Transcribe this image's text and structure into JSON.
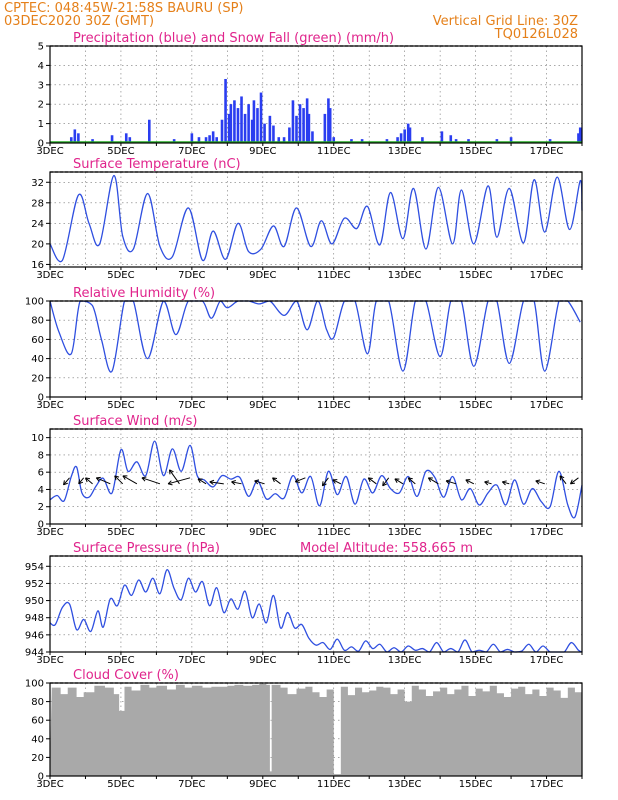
{
  "header": {
    "line1_left": "CPTEC:   048:45W-21:58S   BAURU (SP)",
    "line2_left": "03DEC2020 30Z (GMT)",
    "line1_right": "Vertical Grid Line: 30Z",
    "line2_right": "TQ0126L028"
  },
  "colors": {
    "header": "#e5801a",
    "title": "#e0248c",
    "line": "#2f4fe0",
    "precip": "#2a3df0",
    "snow": "#22aa22",
    "cloud": "#a9a9a9"
  },
  "x_axis": {
    "start_day": 3,
    "end_day": 18,
    "tick_labels": [
      "3DEC",
      "5DEC",
      "7DEC",
      "9DEC",
      "11DEC",
      "13DEC",
      "15DEC",
      "17DEC"
    ]
  },
  "chart_data": [
    {
      "type": "bar",
      "title": "Precipitation (blue) and Snow Fall (green) (mm/h)",
      "ylim": [
        0,
        5
      ],
      "yticks": [
        "0",
        "1",
        "2",
        "3",
        "4",
        "5"
      ],
      "grid": true,
      "series": [
        {
          "name": "Precipitation",
          "color": "#2a3df0",
          "points": [
            [
              3.6,
              0.3
            ],
            [
              3.7,
              0.7
            ],
            [
              3.8,
              0.5
            ],
            [
              4.2,
              0.2
            ],
            [
              4.75,
              0.4
            ],
            [
              5.15,
              0.5
            ],
            [
              5.25,
              0.3
            ],
            [
              5.8,
              1.2
            ],
            [
              6.5,
              0.2
            ],
            [
              7.0,
              0.5
            ],
            [
              7.2,
              0.3
            ],
            [
              7.4,
              0.3
            ],
            [
              7.5,
              0.4
            ],
            [
              7.6,
              0.6
            ],
            [
              7.7,
              0.3
            ],
            [
              7.85,
              1.2
            ],
            [
              7.95,
              3.3
            ],
            [
              8.05,
              1.5
            ],
            [
              8.1,
              2.0
            ],
            [
              8.2,
              2.2
            ],
            [
              8.3,
              1.8
            ],
            [
              8.4,
              2.4
            ],
            [
              8.5,
              1.5
            ],
            [
              8.6,
              2.0
            ],
            [
              8.7,
              1.2
            ],
            [
              8.75,
              2.2
            ],
            [
              8.85,
              1.8
            ],
            [
              8.95,
              2.6
            ],
            [
              9.05,
              1.0
            ],
            [
              9.2,
              1.4
            ],
            [
              9.3,
              0.9
            ],
            [
              9.45,
              0.3
            ],
            [
              9.6,
              0.3
            ],
            [
              9.75,
              0.8
            ],
            [
              9.85,
              2.2
            ],
            [
              9.95,
              1.4
            ],
            [
              10.05,
              2.0
            ],
            [
              10.15,
              1.8
            ],
            [
              10.25,
              2.3
            ],
            [
              10.3,
              1.5
            ],
            [
              10.4,
              0.6
            ],
            [
              10.75,
              1.5
            ],
            [
              10.85,
              2.3
            ],
            [
              10.9,
              1.8
            ],
            [
              11.0,
              0.3
            ],
            [
              11.5,
              0.2
            ],
            [
              11.8,
              0.2
            ],
            [
              12.5,
              0.2
            ],
            [
              12.8,
              0.3
            ],
            [
              12.9,
              0.5
            ],
            [
              13.0,
              0.7
            ],
            [
              13.1,
              1.0
            ],
            [
              13.15,
              0.8
            ],
            [
              13.5,
              0.3
            ],
            [
              14.05,
              0.6
            ],
            [
              14.3,
              0.4
            ],
            [
              14.45,
              0.2
            ],
            [
              14.8,
              0.2
            ],
            [
              15.6,
              0.2
            ],
            [
              16.0,
              0.3
            ],
            [
              17.1,
              0.2
            ],
            [
              17.9,
              0.5
            ],
            [
              17.95,
              0.8
            ]
          ]
        },
        {
          "name": "Snow Fall",
          "color": "#22aa22",
          "points": []
        }
      ]
    },
    {
      "type": "line",
      "title": "Surface Temperature (nC)",
      "ylim": [
        15.5,
        34
      ],
      "yticks": [
        "16",
        "20",
        "24",
        "28",
        "32"
      ],
      "grid": true,
      "x": [
        3.0,
        3.35,
        3.8,
        4.1,
        4.4,
        4.8,
        5.05,
        5.35,
        5.75,
        6.1,
        6.45,
        6.9,
        7.3,
        7.6,
        7.95,
        8.3,
        8.6,
        8.95,
        9.3,
        9.6,
        9.95,
        10.35,
        10.65,
        10.95,
        11.3,
        11.65,
        11.95,
        12.3,
        12.6,
        12.95,
        13.25,
        13.6,
        13.95,
        14.35,
        14.6,
        14.95,
        15.35,
        15.6,
        15.95,
        16.35,
        16.65,
        16.95,
        17.3,
        17.65,
        17.95,
        18.0
      ],
      "values": [
        20,
        16.8,
        29.5,
        24,
        20,
        33.3,
        21.5,
        19,
        29.8,
        19.5,
        17.5,
        27,
        16.8,
        22.5,
        17,
        24,
        18.5,
        19,
        23.5,
        19.5,
        27,
        19.5,
        24.5,
        20,
        25,
        23,
        27.3,
        19.8,
        30,
        21,
        30.8,
        19,
        31,
        20,
        30.5,
        20,
        31.3,
        21.3,
        30.8,
        20.2,
        32.5,
        22.3,
        33,
        22.8,
        32.3,
        26.5
      ]
    },
    {
      "type": "line",
      "title": "Relative Humidity (%)",
      "ylim": [
        0,
        100
      ],
      "yticks": [
        "0",
        "20",
        "40",
        "60",
        "80",
        "100"
      ],
      "grid": true,
      "x": [
        3.0,
        3.25,
        3.6,
        3.85,
        4.2,
        4.45,
        4.75,
        5.1,
        5.35,
        5.75,
        6.2,
        6.55,
        6.9,
        7.3,
        7.55,
        7.8,
        8.0,
        8.3,
        8.6,
        8.9,
        9.2,
        9.6,
        9.95,
        10.25,
        10.55,
        10.8,
        11.0,
        11.3,
        11.6,
        11.95,
        12.2,
        12.55,
        12.95,
        13.3,
        13.6,
        14.0,
        14.3,
        14.6,
        14.95,
        15.35,
        15.6,
        15.95,
        16.35,
        16.65,
        16.95,
        17.35,
        17.6,
        17.95
      ],
      "values": [
        100,
        68,
        45,
        100,
        95,
        60,
        27,
        100,
        100,
        40,
        100,
        65,
        100,
        100,
        82,
        100,
        93,
        100,
        100,
        97,
        100,
        85,
        100,
        70,
        100,
        70,
        62,
        100,
        100,
        45,
        100,
        100,
        27,
        100,
        100,
        42,
        100,
        100,
        32,
        100,
        100,
        35,
        100,
        100,
        27,
        100,
        100,
        78
      ]
    },
    {
      "type": "line",
      "title": "Surface Wind (m/s)",
      "ylim": [
        0,
        11
      ],
      "yticks": [
        "0",
        "2",
        "4",
        "6",
        "8",
        "10"
      ],
      "grid": true,
      "x": [
        3.0,
        3.2,
        3.4,
        3.6,
        3.75,
        3.9,
        4.1,
        4.3,
        4.5,
        4.75,
        5.0,
        5.2,
        5.45,
        5.7,
        5.95,
        6.2,
        6.45,
        6.7,
        6.95,
        7.15,
        7.35,
        7.6,
        7.85,
        8.1,
        8.35,
        8.6,
        8.85,
        9.1,
        9.35,
        9.6,
        9.85,
        10.1,
        10.35,
        10.6,
        10.85,
        11.1,
        11.35,
        11.6,
        11.85,
        12.1,
        12.35,
        12.6,
        12.85,
        13.1,
        13.35,
        13.6,
        13.85,
        14.1,
        14.35,
        14.6,
        14.85,
        15.1,
        15.35,
        15.6,
        15.85,
        16.1,
        16.35,
        16.6,
        16.85,
        17.1,
        17.35,
        17.6,
        17.8,
        18.0
      ],
      "values": [
        2.8,
        3.3,
        2.7,
        5.5,
        6.6,
        3.6,
        3.1,
        4.4,
        5.3,
        3.6,
        8.6,
        6.1,
        7.2,
        5.6,
        9.6,
        5.6,
        8.7,
        6.1,
        9.1,
        5.6,
        5.1,
        4.3,
        5.6,
        5.2,
        5.4,
        3.2,
        5.0,
        2.9,
        3.5,
        3.0,
        5.6,
        3.6,
        5.5,
        2.1,
        6.1,
        3.4,
        5.5,
        2.3,
        5.2,
        3.6,
        5.6,
        4.1,
        3.6,
        5.5,
        3.2,
        6.1,
        5.4,
        3.1,
        5.5,
        2.8,
        4.1,
        2.2,
        3.6,
        4.5,
        2.2,
        5.1,
        2.3,
        4.1,
        2.6,
        2.0,
        6.1,
        2.2,
        0.8,
        4.5
      ]
    },
    {
      "type": "line",
      "title": "Surface Pressure (hPa)",
      "annotation": "Model Altitude: 558.665  m",
      "ylim": [
        944,
        955.2
      ],
      "yticks": [
        "944",
        "946",
        "948",
        "950",
        "952",
        "954"
      ],
      "grid": true,
      "x": [
        3.0,
        3.15,
        3.35,
        3.55,
        3.75,
        3.95,
        4.15,
        4.35,
        4.5,
        4.7,
        4.9,
        5.1,
        5.3,
        5.5,
        5.7,
        5.9,
        6.1,
        6.3,
        6.5,
        6.7,
        6.9,
        7.1,
        7.3,
        7.5,
        7.7,
        7.9,
        8.1,
        8.3,
        8.5,
        8.7,
        8.9,
        9.1,
        9.3,
        9.5,
        9.7,
        9.9,
        10.1,
        10.3,
        10.5,
        10.7,
        10.9,
        11.1,
        11.3,
        11.5,
        11.7,
        11.9,
        12.1,
        12.3,
        12.5,
        12.7,
        12.9,
        13.1,
        13.3,
        13.5,
        13.7,
        13.9,
        14.1,
        14.3,
        14.5,
        14.7,
        14.9,
        15.1,
        15.3,
        15.5,
        15.7,
        15.9,
        16.1,
        16.3,
        16.5,
        16.7,
        16.9,
        17.1,
        17.3,
        17.5,
        17.7,
        17.9,
        18.0
      ],
      "values": [
        947.4,
        947.2,
        949.2,
        949.6,
        946.6,
        947.8,
        946.4,
        948.8,
        946.9,
        950.2,
        949.4,
        951.8,
        950.6,
        952.4,
        951.0,
        952.6,
        950.8,
        953.6,
        951.4,
        950.1,
        952.6,
        951.0,
        952.2,
        949.4,
        951.5,
        948.6,
        950.2,
        949.0,
        951.1,
        948.0,
        949.6,
        947.4,
        950.6,
        946.8,
        948.6,
        946.8,
        947.2,
        945.6,
        944.8,
        945.1,
        944.3,
        945.5,
        944.2,
        944.6,
        944.1,
        945.3,
        944.4,
        944.9,
        944.0,
        944.5,
        944.0,
        944.7,
        944.2,
        944.4,
        944.0,
        945.1,
        944.0,
        944.4,
        944.0,
        945.4,
        944.0,
        944.2,
        944.0,
        944.9,
        944.0,
        944.3,
        944.0,
        944.1,
        944.9,
        944.0,
        944.7,
        944.0,
        944.0,
        944.0,
        945.1,
        944.2,
        944.0
      ]
    },
    {
      "type": "area",
      "title": "Cloud Cover (%)",
      "ylim": [
        0,
        100
      ],
      "yticks": [
        "0",
        "20",
        "40",
        "60",
        "80",
        "100"
      ],
      "grid": true,
      "x": [
        3.05,
        3.3,
        3.5,
        3.75,
        3.95,
        4.25,
        4.55,
        4.8,
        4.95,
        5.1,
        5.3,
        5.55,
        5.8,
        6.0,
        6.3,
        6.55,
        6.8,
        7.0,
        7.3,
        7.55,
        7.8,
        8.0,
        8.2,
        8.45,
        8.7,
        8.9,
        9.1,
        9.2,
        9.25,
        9.5,
        9.7,
        9.95,
        10.2,
        10.4,
        10.6,
        10.8,
        11.0,
        11.2,
        11.4,
        11.6,
        11.8,
        12.0,
        12.2,
        12.4,
        12.6,
        12.8,
        13.0,
        13.2,
        13.4,
        13.6,
        13.8,
        14.0,
        14.2,
        14.4,
        14.6,
        14.8,
        15.0,
        15.2,
        15.4,
        15.6,
        15.8,
        16.0,
        16.2,
        16.4,
        16.6,
        16.8,
        17.0,
        17.2,
        17.4,
        17.6,
        17.8,
        18.0
      ],
      "values": [
        95,
        88,
        95,
        85,
        90,
        97,
        95,
        88,
        70,
        96,
        92,
        98,
        95,
        97,
        93,
        98,
        95,
        97,
        95,
        96,
        96,
        97,
        98,
        97,
        98,
        99,
        98,
        5,
        98,
        95,
        88,
        94,
        96,
        90,
        85,
        93,
        2,
        96,
        87,
        95,
        90,
        92,
        96,
        95,
        88,
        93,
        80,
        97,
        93,
        86,
        91,
        95,
        88,
        93,
        97,
        86,
        94,
        91,
        97,
        89,
        85,
        94,
        96,
        88,
        93,
        86,
        95,
        92,
        84,
        95,
        90,
        96
      ]
    }
  ],
  "wind_arrows": [
    {
      "day": 3.55,
      "dx": -6,
      "dy": 7
    },
    {
      "day": 3.95,
      "dx": -5,
      "dy": 6
    },
    {
      "day": 4.2,
      "dx": -7,
      "dy": -6
    },
    {
      "day": 4.7,
      "dx": -14,
      "dy": -6
    },
    {
      "day": 5.05,
      "dx": -8,
      "dy": -8
    },
    {
      "day": 5.45,
      "dx": -14,
      "dy": -8
    },
    {
      "day": 6.1,
      "dx": -18,
      "dy": -6
    },
    {
      "day": 6.65,
      "dx": -10,
      "dy": -14
    },
    {
      "day": 6.95,
      "dx": -22,
      "dy": 6
    },
    {
      "day": 7.4,
      "dx": -8,
      "dy": -5
    },
    {
      "day": 7.9,
      "dx": -14,
      "dy": -2
    },
    {
      "day": 8.4,
      "dx": -10,
      "dy": -2
    },
    {
      "day": 9.05,
      "dx": -10,
      "dy": -3
    },
    {
      "day": 9.5,
      "dx": -8,
      "dy": -6
    },
    {
      "day": 10.2,
      "dx": -10,
      "dy": 4
    },
    {
      "day": 10.85,
      "dx": -6,
      "dy": 8
    },
    {
      "day": 11.2,
      "dx": -8,
      "dy": -4
    },
    {
      "day": 12.2,
      "dx": -8,
      "dy": -6
    },
    {
      "day": 12.55,
      "dx": -6,
      "dy": 8
    },
    {
      "day": 12.95,
      "dx": -8,
      "dy": -5
    },
    {
      "day": 13.3,
      "dx": -7,
      "dy": -6
    },
    {
      "day": 13.95,
      "dx": -10,
      "dy": -6
    },
    {
      "day": 14.45,
      "dx": -10,
      "dy": -3
    },
    {
      "day": 14.95,
      "dx": -8,
      "dy": -4
    },
    {
      "day": 15.45,
      "dx": -7,
      "dy": -2
    },
    {
      "day": 15.95,
      "dx": -7,
      "dy": -2
    },
    {
      "day": 16.95,
      "dx": -9,
      "dy": -3
    },
    {
      "day": 17.55,
      "dx": -6,
      "dy": -8
    },
    {
      "day": 17.9,
      "dx": -8,
      "dy": 6
    }
  ]
}
